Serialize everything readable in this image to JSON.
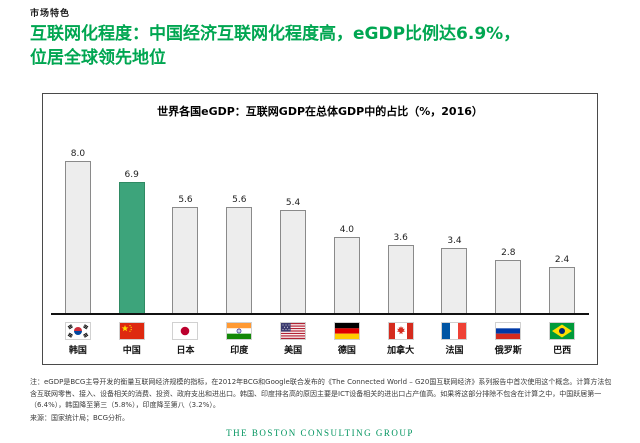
{
  "page": {
    "tag": "市场特色",
    "title_line1": "互联网化程度：中国经济互联网化程度高，eGDP比例达6.9%，",
    "title_line2": "位居全球领先地位"
  },
  "chart_data": {
    "type": "bar",
    "title": "世界各国eGDP：互联网GDP在总体GDP中的占比（%，2016）",
    "categories": [
      "韩国",
      "中国",
      "日本",
      "印度",
      "美国",
      "德国",
      "加拿大",
      "法国",
      "俄罗斯",
      "巴西"
    ],
    "values": [
      8.0,
      6.9,
      5.6,
      5.6,
      5.4,
      4.0,
      3.6,
      3.4,
      2.8,
      2.4
    ],
    "value_labels": [
      "8.0",
      "6.9",
      "5.6",
      "5.6",
      "5.4",
      "4.0",
      "3.6",
      "3.4",
      "2.8",
      "2.4"
    ],
    "flags": [
      "korea",
      "china",
      "japan",
      "india",
      "usa",
      "germany",
      "canada",
      "france",
      "russia",
      "brazil"
    ],
    "highlight_index": 1,
    "highlight_category": "中国",
    "unit": "%",
    "year": "2016",
    "ylim": [
      0,
      8.5
    ],
    "grid": false,
    "legend": "none"
  },
  "colors": {
    "title_green": "#00A651",
    "bar_fill": "#EDEDED",
    "bar_border": "#8A8A8A",
    "highlight_fill": "#3DA47B",
    "highlight_border": "#2F8A63",
    "axis": "#111111",
    "logo_green": "#00945E"
  },
  "footnote": {
    "note": "注：eGDP是BCG主导开发的衡量互联网经济规模的指标，在2012年BCG和Google联合发布的《The Connected World – G20国互联网经济》系列报告中首次使用这个概念。计算方法包含互联网零售、接入、设备相关的消费、投资、政府支出和进出口。韩国、印度排名高的原因主要是ICT设备相关的进出口占产值高。如果将这部分排除不包含在计算之中，中国跃居第一（6.4%），韩国降至第三（5.8%），印度降至第八（3.2%）。",
    "source": "来源：国家统计局；BCG分析。"
  },
  "footer": {
    "logo_text": "THE BOSTON CONSULTING GROUP"
  }
}
